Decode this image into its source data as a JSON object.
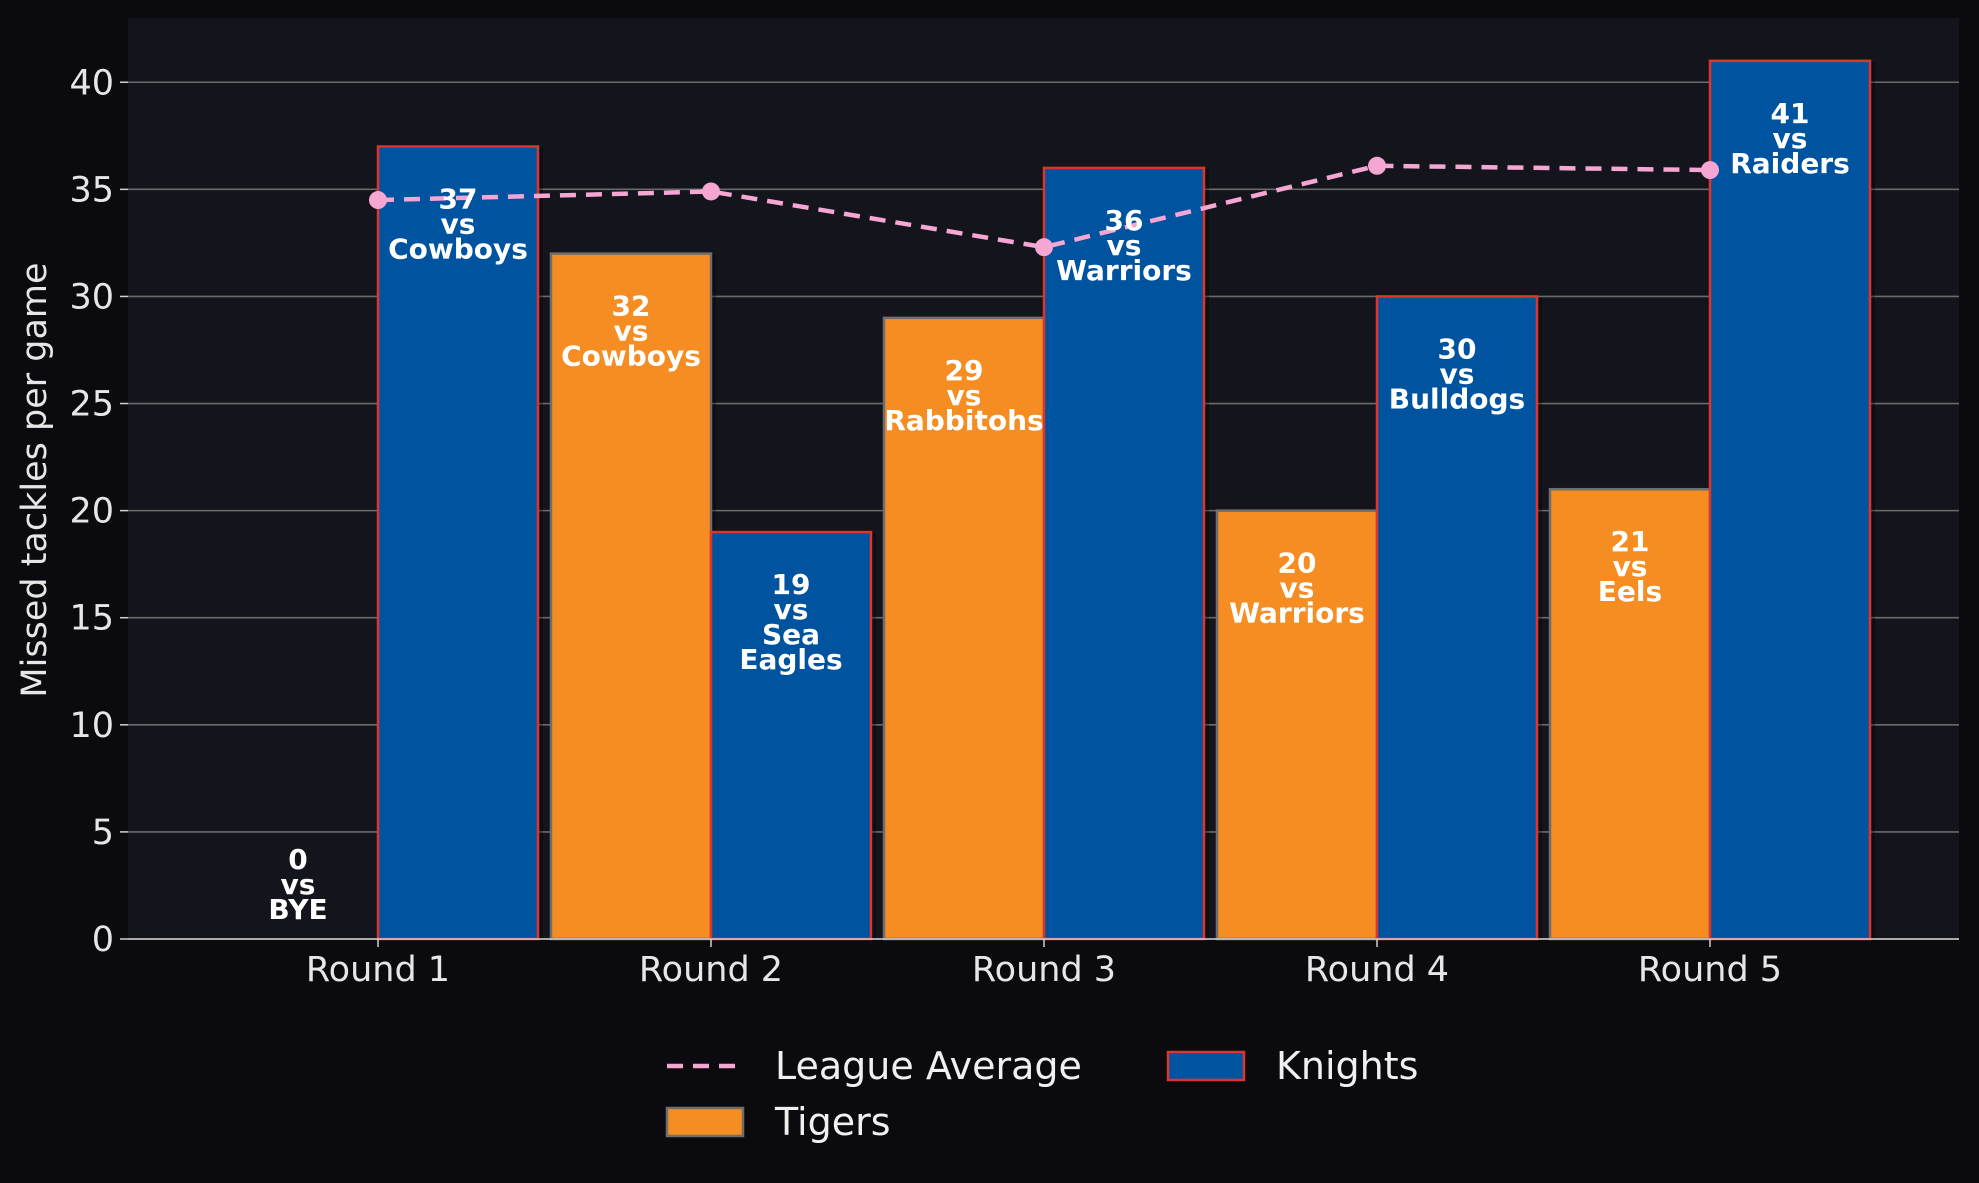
{
  "chart_data": {
    "type": "bar",
    "ylabel": "Missed tackles per game",
    "ylim": [
      0,
      43
    ],
    "yticks": [
      0,
      5,
      10,
      15,
      20,
      25,
      30,
      35,
      40
    ],
    "grid": "horizontal",
    "legend_position": "bottom-center",
    "categories": [
      "Round 1",
      "Round 2",
      "Round 3",
      "Round 4",
      "Round 5"
    ],
    "series": [
      {
        "name": "Tigers",
        "kind": "bar",
        "color": "#f58d22",
        "values": [
          0,
          32,
          29,
          20,
          21
        ],
        "opponents": [
          "BYE",
          "Cowboys",
          "Rabbitohs",
          "Warriors",
          "Eels"
        ]
      },
      {
        "name": "Knights",
        "kind": "bar",
        "color": "#00539f",
        "edge_color": "#e0342a",
        "values": [
          37,
          19,
          36,
          30,
          41
        ],
        "opponents": [
          "Cowboys",
          "Sea Eagles",
          "Warriors",
          "Bulldogs",
          "Raiders"
        ]
      },
      {
        "name": "League Average",
        "kind": "line",
        "style": "dashed",
        "color": "#f5a6d3",
        "values": [
          34.5,
          34.9,
          32.3,
          36.1,
          35.9
        ]
      }
    ],
    "vs_word": "vs",
    "colors": {
      "figure_bg": "#0b0b0f",
      "plot_bg": "#13141c",
      "grid": "#6a6a6a",
      "tigers_edge": "#6e6e6e"
    }
  }
}
